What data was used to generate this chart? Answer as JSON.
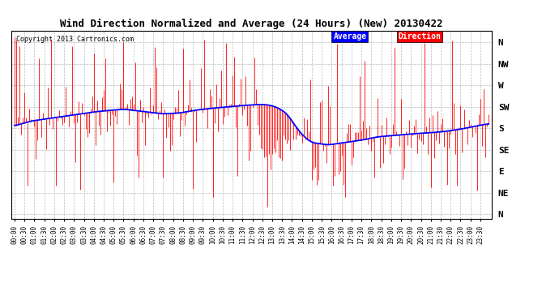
{
  "title": "Wind Direction Normalized and Average (24 Hours) (New) 20130422",
  "copyright": "Copyright 2013 Cartronics.com",
  "background_color": "#ffffff",
  "plot_bg_color": "#ffffff",
  "grid_color": "#bbbbbb",
  "direction_line_color": "#ff0000",
  "average_line_color": "#0000ff",
  "ytick_labels": [
    "N",
    "NW",
    "W",
    "SW",
    "S",
    "SE",
    "E",
    "NE",
    "N"
  ],
  "ytick_values": [
    360,
    315,
    270,
    225,
    180,
    135,
    90,
    45,
    0
  ],
  "ylim": [
    -10,
    385
  ],
  "legend_avg_label": "Average",
  "legend_dir_label": "Direction",
  "legend_avg_color": "#0000ff",
  "legend_dir_color": "#ff0000",
  "num_points": 288,
  "seed": 42,
  "avg_cp_x": [
    0,
    10,
    30,
    50,
    66,
    78,
    90,
    100,
    110,
    120,
    130,
    140,
    150,
    155,
    160,
    165,
    168,
    172,
    176,
    180,
    190,
    200,
    210,
    220,
    230,
    240,
    250,
    260,
    270,
    280,
    288
  ],
  "avg_cp_y": [
    185,
    195,
    205,
    215,
    220,
    215,
    210,
    212,
    218,
    222,
    225,
    228,
    230,
    228,
    222,
    210,
    195,
    175,
    160,
    150,
    145,
    150,
    155,
    162,
    165,
    168,
    170,
    173,
    178,
    185,
    190
  ]
}
